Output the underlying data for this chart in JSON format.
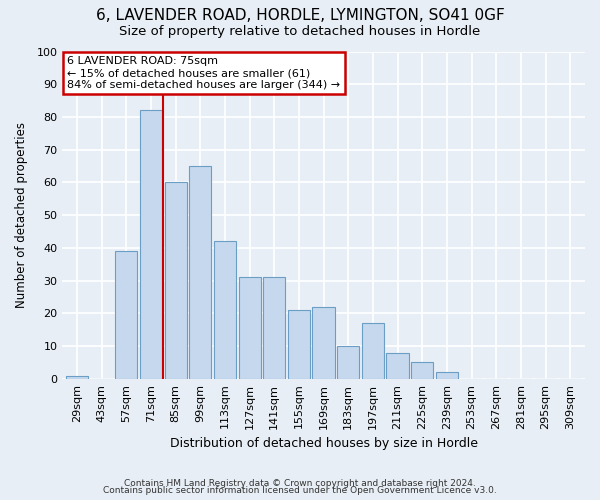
{
  "title": "6, LAVENDER ROAD, HORDLE, LYMINGTON, SO41 0GF",
  "subtitle": "Size of property relative to detached houses in Hordle",
  "xlabel": "Distribution of detached houses by size in Hordle",
  "ylabel": "Number of detached properties",
  "footer_line1": "Contains HM Land Registry data © Crown copyright and database right 2024.",
  "footer_line2": "Contains public sector information licensed under the Open Government Licence v3.0.",
  "bin_labels": [
    "29sqm",
    "43sqm",
    "57sqm",
    "71sqm",
    "85sqm",
    "99sqm",
    "113sqm",
    "127sqm",
    "141sqm",
    "155sqm",
    "169sqm",
    "183sqm",
    "197sqm",
    "211sqm",
    "225sqm",
    "239sqm",
    "253sqm",
    "267sqm",
    "281sqm",
    "295sqm",
    "309sqm"
  ],
  "bar_values": [
    1,
    0,
    39,
    82,
    60,
    65,
    42,
    31,
    31,
    21,
    22,
    10,
    17,
    8,
    5,
    2,
    0,
    0,
    0,
    0,
    0
  ],
  "bar_color": "#c5d8ee",
  "bar_edge_color": "#6a9ec5",
  "vline_x": 3.5,
  "vline_color": "#cc0000",
  "annotation_text": "6 LAVENDER ROAD: 75sqm\n← 15% of detached houses are smaller (61)\n84% of semi-detached houses are larger (344) →",
  "annotation_box_color": "#ffffff",
  "annotation_box_edge": "#cc0000",
  "ylim": [
    0,
    100
  ],
  "background_color": "#e8eef5",
  "plot_bg_color": "#e8eef5",
  "grid_color": "#ffffff",
  "title_fontsize": 11,
  "subtitle_fontsize": 9.5
}
